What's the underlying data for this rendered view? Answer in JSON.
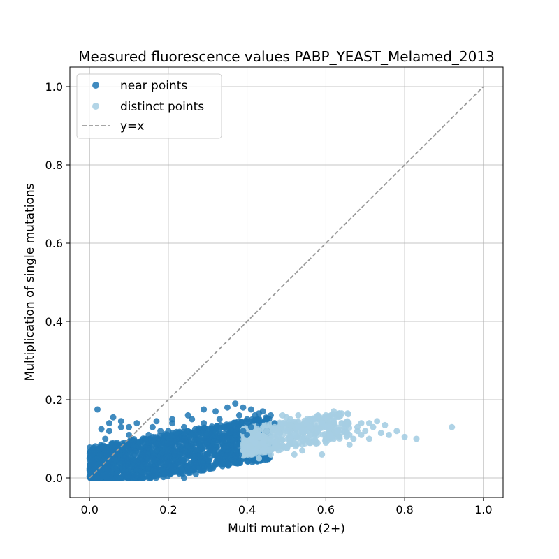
{
  "chart_data": {
    "type": "scatter",
    "title": "Measured fluorescence values PABP_YEAST_Melamed_2013",
    "xlabel": "Multi mutation (2+)",
    "ylabel": "Multiplication of single mutations",
    "xlim": [
      -0.05,
      1.05
    ],
    "ylim": [
      -0.05,
      1.05
    ],
    "xticks": [
      "0.0",
      "0.2",
      "0.4",
      "0.6",
      "0.8",
      "1.0"
    ],
    "yticks": [
      "0.0",
      "0.2",
      "0.4",
      "0.6",
      "0.8",
      "1.0"
    ],
    "grid": true,
    "legend_position": "upper-left",
    "series": [
      {
        "name": "near points",
        "color": "#1f77b4",
        "points": [
          [
            0.005,
            0.003
          ],
          [
            0.01,
            0.02
          ],
          [
            0.02,
            0.05
          ],
          [
            0.03,
            0.08
          ],
          [
            0.04,
            0.1
          ],
          [
            0.05,
            0.12
          ],
          [
            0.06,
            0.04
          ],
          [
            0.07,
            0.09
          ],
          [
            0.08,
            0.13
          ],
          [
            0.09,
            0.06
          ],
          [
            0.1,
            0.11
          ],
          [
            0.11,
            0.03
          ],
          [
            0.12,
            0.14
          ],
          [
            0.13,
            0.08
          ],
          [
            0.14,
            0.1
          ],
          [
            0.15,
            0.05
          ],
          [
            0.16,
            0.13
          ],
          [
            0.17,
            0.07
          ],
          [
            0.18,
            0.12
          ],
          [
            0.19,
            0.09
          ],
          [
            0.2,
            0.04
          ],
          [
            0.21,
            0.14
          ],
          [
            0.22,
            0.1
          ],
          [
            0.23,
            0.06
          ],
          [
            0.24,
            0.13
          ],
          [
            0.25,
            0.08
          ],
          [
            0.26,
            0.15
          ],
          [
            0.27,
            0.11
          ],
          [
            0.28,
            0.06
          ],
          [
            0.29,
            0.14
          ],
          [
            0.3,
            0.09
          ],
          [
            0.31,
            0.12
          ],
          [
            0.32,
            0.07
          ],
          [
            0.33,
            0.15
          ],
          [
            0.34,
            0.1
          ],
          [
            0.35,
            0.08
          ],
          [
            0.36,
            0.13
          ],
          [
            0.37,
            0.11
          ],
          [
            0.38,
            0.16
          ],
          [
            0.39,
            0.12
          ],
          [
            0.4,
            0.15
          ],
          [
            0.41,
            0.13
          ],
          [
            0.42,
            0.16
          ],
          [
            0.43,
            0.14
          ],
          [
            0.44,
            0.17
          ],
          [
            0.45,
            0.15
          ],
          [
            0.46,
            0.16
          ],
          [
            0.3,
            0.03
          ],
          [
            0.27,
            0.01
          ],
          [
            0.25,
            0.03
          ],
          [
            0.24,
            0.0
          ],
          [
            0.33,
            0.05
          ],
          [
            0.36,
            0.06
          ],
          [
            0.38,
            0.06
          ],
          [
            0.02,
            0.175
          ],
          [
            0.05,
            0.14
          ],
          [
            0.06,
            0.155
          ],
          [
            0.08,
            0.145
          ],
          [
            0.1,
            0.13
          ],
          [
            0.17,
            0.145
          ],
          [
            0.21,
            0.15
          ],
          [
            0.25,
            0.16
          ],
          [
            0.29,
            0.175
          ],
          [
            0.32,
            0.17
          ],
          [
            0.35,
            0.18
          ],
          [
            0.37,
            0.19
          ],
          [
            0.39,
            0.18
          ],
          [
            0.41,
            0.175
          ],
          [
            0.43,
            0.165
          ],
          [
            0.12,
            0.02
          ],
          [
            0.15,
            0.0
          ],
          [
            0.19,
            0.01
          ],
          [
            0.0,
            0.05
          ],
          [
            0.03,
            0.125
          ],
          [
            0.15,
            0.11
          ],
          [
            0.2,
            0.12
          ],
          [
            0.22,
            0.07
          ],
          [
            0.28,
            0.1
          ],
          [
            0.31,
            0.08
          ],
          [
            0.34,
            0.13
          ],
          [
            0.4,
            0.11
          ],
          [
            0.45,
            0.12
          ],
          [
            0.47,
            0.14
          ]
        ]
      },
      {
        "name": "distinct points",
        "color": "#a6cee3",
        "points": [
          [
            0.4,
            0.08
          ],
          [
            0.41,
            0.1
          ],
          [
            0.42,
            0.07
          ],
          [
            0.43,
            0.11
          ],
          [
            0.44,
            0.09
          ],
          [
            0.45,
            0.12
          ],
          [
            0.46,
            0.1
          ],
          [
            0.47,
            0.13
          ],
          [
            0.48,
            0.11
          ],
          [
            0.49,
            0.14
          ],
          [
            0.5,
            0.12
          ],
          [
            0.51,
            0.15
          ],
          [
            0.52,
            0.11
          ],
          [
            0.53,
            0.13
          ],
          [
            0.54,
            0.12
          ],
          [
            0.55,
            0.14
          ],
          [
            0.56,
            0.13
          ],
          [
            0.57,
            0.15
          ],
          [
            0.58,
            0.12
          ],
          [
            0.59,
            0.14
          ],
          [
            0.6,
            0.16
          ],
          [
            0.61,
            0.13
          ],
          [
            0.62,
            0.15
          ],
          [
            0.63,
            0.12
          ],
          [
            0.64,
            0.14
          ],
          [
            0.65,
            0.13
          ],
          [
            0.66,
            0.11
          ],
          [
            0.67,
            0.1
          ],
          [
            0.68,
            0.13
          ],
          [
            0.69,
            0.14
          ],
          [
            0.7,
            0.12
          ],
          [
            0.71,
            0.1
          ],
          [
            0.72,
            0.13
          ],
          [
            0.73,
            0.145
          ],
          [
            0.74,
            0.115
          ],
          [
            0.76,
            0.11
          ],
          [
            0.78,
            0.12
          ],
          [
            0.8,
            0.105
          ],
          [
            0.83,
            0.1
          ],
          [
            0.92,
            0.13
          ],
          [
            0.59,
            0.06
          ],
          [
            0.6,
            0.09
          ],
          [
            0.62,
            0.1
          ],
          [
            0.66,
            0.085
          ],
          [
            0.39,
            0.07
          ],
          [
            0.41,
            0.06
          ],
          [
            0.44,
            0.07
          ],
          [
            0.46,
            0.06
          ],
          [
            0.48,
            0.07
          ],
          [
            0.5,
            0.08
          ],
          [
            0.52,
            0.09
          ],
          [
            0.54,
            0.1
          ],
          [
            0.56,
            0.11
          ],
          [
            0.58,
            0.12
          ],
          [
            0.6,
            0.13
          ],
          [
            0.62,
            0.17
          ],
          [
            0.64,
            0.165
          ],
          [
            0.49,
            0.16
          ],
          [
            0.5,
            0.155
          ],
          [
            0.53,
            0.16
          ],
          [
            0.56,
            0.15
          ],
          [
            0.58,
            0.16
          ],
          [
            0.6,
            0.155
          ],
          [
            0.42,
            0.09
          ],
          [
            0.43,
            0.05
          ],
          [
            0.45,
            0.08
          ],
          [
            0.47,
            0.09
          ],
          [
            0.51,
            0.1
          ],
          [
            0.55,
            0.12
          ],
          [
            0.57,
            0.1
          ],
          [
            0.61,
            0.11
          ],
          [
            0.65,
            0.12
          ],
          [
            0.69,
            0.11
          ],
          [
            0.75,
            0.135
          ],
          [
            0.71,
            0.14
          ],
          [
            0.68,
            0.12
          ],
          [
            0.54,
            0.07
          ],
          [
            0.52,
            0.06
          ]
        ]
      }
    ],
    "reference_line": {
      "name": "y=x",
      "color": "#999999",
      "from": [
        0.0,
        0.0
      ],
      "to": [
        1.0,
        1.0
      ]
    }
  }
}
